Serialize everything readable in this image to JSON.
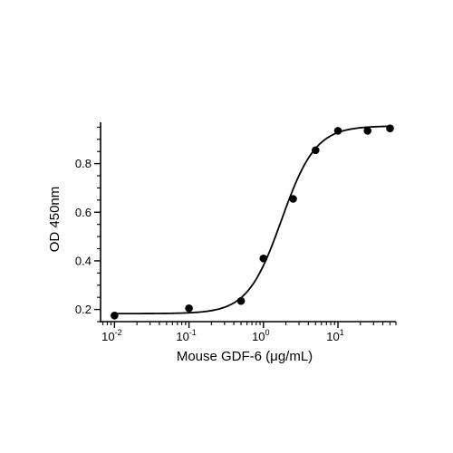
{
  "chart_data": {
    "type": "scatter",
    "title": "",
    "xlabel": "Mouse GDF-6 (μg/mL)",
    "ylabel": "OD 450nm",
    "xscale": "log",
    "xlim": [
      0.0065,
      60
    ],
    "ylim": [
      0.15,
      0.97
    ],
    "x_ticks": [
      {
        "value": 0.01,
        "base": "10",
        "exp": "-2"
      },
      {
        "value": 0.1,
        "base": "10",
        "exp": "-1"
      },
      {
        "value": 1,
        "base": "10",
        "exp": "0"
      },
      {
        "value": 10,
        "base": "10",
        "exp": "1"
      }
    ],
    "y_ticks": [
      {
        "value": 0.2,
        "label": "0.2"
      },
      {
        "value": 0.4,
        "label": "0.4"
      },
      {
        "value": 0.6,
        "label": "0.6"
      },
      {
        "value": 0.8,
        "label": "0.8"
      }
    ],
    "grid": false,
    "series": [
      {
        "points": [
          {
            "x": 0.01,
            "y": 0.175
          },
          {
            "x": 0.1,
            "y": 0.205
          },
          {
            "x": 0.5,
            "y": 0.235
          },
          {
            "x": 1,
            "y": 0.41
          },
          {
            "x": 2.5,
            "y": 0.655
          },
          {
            "x": 5,
            "y": 0.855
          },
          {
            "x": 10,
            "y": 0.935
          },
          {
            "x": 25,
            "y": 0.935
          },
          {
            "x": 50,
            "y": 0.945
          }
        ],
        "fit": {
          "model": "4PL",
          "bottom": 0.183,
          "top": 0.955,
          "ec50": 1.75,
          "hill": 1.9
        }
      }
    ]
  }
}
